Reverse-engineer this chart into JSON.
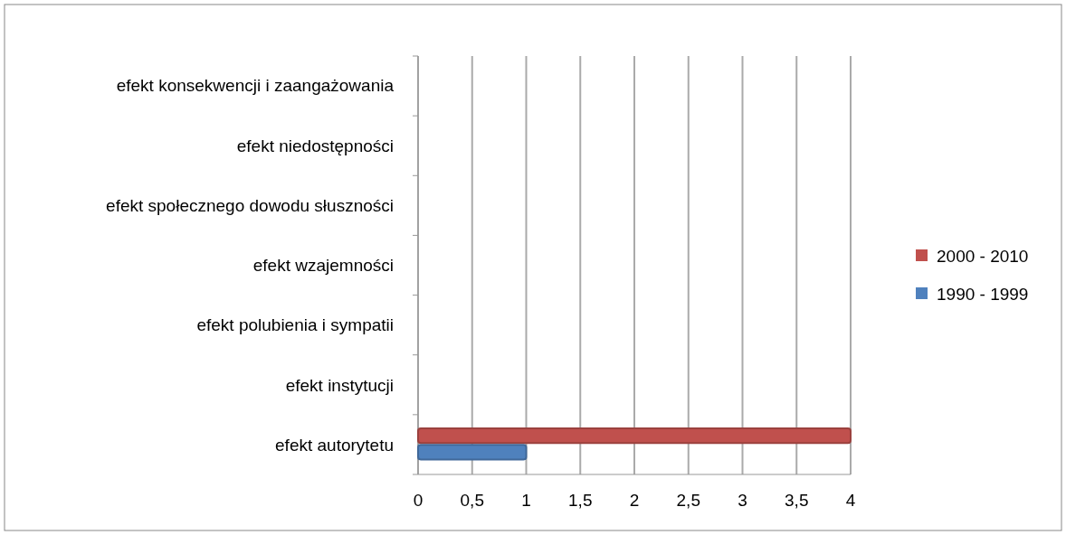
{
  "chart_data": {
    "type": "bar",
    "orientation": "horizontal",
    "categories": [
      "efekt konsekwencji i zaangażowania",
      "efekt niedostępności",
      "efekt społecznego dowodu słuszności",
      "efekt wzajemności",
      "efekt polubienia i sympatii",
      "efekt instytucji",
      "efekt autorytetu"
    ],
    "series": [
      {
        "name": "2000 - 2010",
        "color": "#c0504d",
        "values": [
          0,
          0,
          0,
          0,
          0,
          0,
          4
        ]
      },
      {
        "name": "1990 - 1999",
        "color": "#4f81bd",
        "values": [
          0,
          0,
          0,
          0,
          0,
          0,
          1
        ]
      }
    ],
    "xlim": [
      0,
      4
    ],
    "xticks": [
      0,
      "0,5",
      1,
      "1,5",
      2,
      "2,5",
      3,
      "3,5",
      4
    ],
    "grid": "x",
    "legend": "right"
  }
}
